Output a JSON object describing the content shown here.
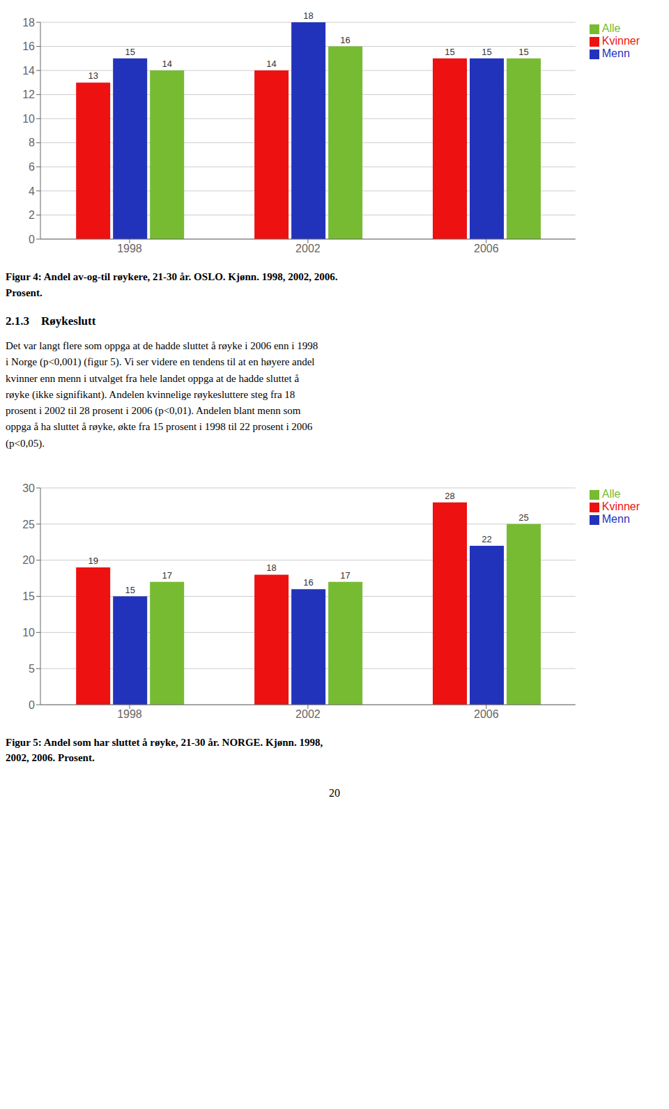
{
  "chart_data": [
    {
      "type": "bar",
      "title": "Figur 4: Andel av-og-til røykere, 21-30 år. OSLO. Kjønn. 1998, 2002, 2006.\nProsent.",
      "categories": [
        "1998",
        "2002",
        "2006"
      ],
      "series": [
        {
          "name": "Kvinner",
          "color": "#EE1111",
          "values": [
            13,
            14,
            15
          ]
        },
        {
          "name": "Menn",
          "color": "#2233BB",
          "values": [
            15,
            18,
            15
          ]
        },
        {
          "name": "Alle",
          "color": "#77BB33",
          "values": [
            14,
            16,
            15
          ]
        }
      ],
      "ylim": [
        0,
        18
      ],
      "yticks": [
        0,
        2,
        4,
        6,
        8,
        10,
        12,
        14,
        16,
        18
      ],
      "grid": true,
      "legend": "right",
      "data_labels": true
    },
    {
      "type": "bar",
      "title": "Figur 5: Andel som har sluttet å røyke, 21-30 år. NORGE. Kjønn. 1998,\n2002, 2006. Prosent.",
      "categories": [
        "1998",
        "2002",
        "2006"
      ],
      "series": [
        {
          "name": "Kvinner",
          "color": "#EE1111",
          "values": [
            19,
            18,
            28
          ]
        },
        {
          "name": "Menn",
          "color": "#2233BB",
          "values": [
            15,
            16,
            22
          ]
        },
        {
          "name": "Alle",
          "color": "#77BB33",
          "values": [
            17,
            17,
            25
          ]
        }
      ],
      "ylim": [
        0,
        30
      ],
      "yticks": [
        0,
        5,
        10,
        15,
        20,
        25,
        30
      ],
      "grid": true,
      "legend": "right",
      "data_labels": true
    }
  ],
  "annotations": [
    "2.1.3\tRøykeslutt",
    "Det var langt flere som oppga at de hadde sluttet å røyke i 2006 enn i 1998\ni Norge (p<0,001) (figur 5). Vi ser videre en tendens til at en høyere andel\nkvinner enn menn i utvalget fra hele landet oppga at de hadde sluttet å\nrøyke (ikke signifikant). Andelen kvinnelige røykesluttere steg fra 18\nprosent i 2002 til 28 prosent i 2006 (p<0,01). Andelen blant menn som\noppga å ha sluttet å røyke, økte fra 15 prosent i 1998 til 22 prosent i 2006\n(p<0,05).",
    "20"
  ]
}
